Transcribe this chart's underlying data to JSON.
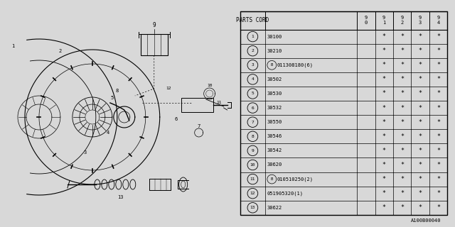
{
  "watermark": "A100B00040",
  "table_header": "PARTS CORD",
  "col_headers": [
    "9\n0",
    "9\n1",
    "9\n2",
    "9\n3",
    "9\n4"
  ],
  "rows": [
    {
      "num": "1",
      "part": "30100",
      "has_b": false,
      "stars": [
        " ",
        "*",
        "*",
        "*",
        "*"
      ]
    },
    {
      "num": "2",
      "part": "30210",
      "has_b": false,
      "stars": [
        " ",
        "*",
        "*",
        "*",
        "*"
      ]
    },
    {
      "num": "3",
      "part": "011308180(6)",
      "has_b": true,
      "stars": [
        " ",
        "*",
        "*",
        "*",
        "*"
      ]
    },
    {
      "num": "4",
      "part": "30502",
      "has_b": false,
      "stars": [
        " ",
        "*",
        "*",
        "*",
        "*"
      ]
    },
    {
      "num": "5",
      "part": "30530",
      "has_b": false,
      "stars": [
        " ",
        "*",
        "*",
        "*",
        "*"
      ]
    },
    {
      "num": "6",
      "part": "30532",
      "has_b": false,
      "stars": [
        " ",
        "*",
        "*",
        "*",
        "*"
      ]
    },
    {
      "num": "7",
      "part": "30550",
      "has_b": false,
      "stars": [
        " ",
        "*",
        "*",
        "*",
        "*"
      ]
    },
    {
      "num": "8",
      "part": "30546",
      "has_b": false,
      "stars": [
        " ",
        "*",
        "*",
        "*",
        "*"
      ]
    },
    {
      "num": "9",
      "part": "30542",
      "has_b": false,
      "stars": [
        " ",
        "*",
        "*",
        "*",
        "*"
      ]
    },
    {
      "num": "10",
      "part": "30620",
      "has_b": false,
      "stars": [
        " ",
        "*",
        "*",
        "*",
        "*"
      ]
    },
    {
      "num": "11",
      "part": "010510250(2)",
      "has_b": true,
      "stars": [
        " ",
        "*",
        "*",
        "*",
        "*"
      ]
    },
    {
      "num": "12",
      "part": "051905320(1)",
      "has_b": false,
      "stars": [
        " ",
        "*",
        "*",
        "*",
        "*"
      ]
    },
    {
      "num": "13",
      "part": "30622",
      "has_b": false,
      "stars": [
        " ",
        "*",
        "*",
        "*",
        "*"
      ]
    }
  ],
  "bg_color": "#d8d8d8"
}
